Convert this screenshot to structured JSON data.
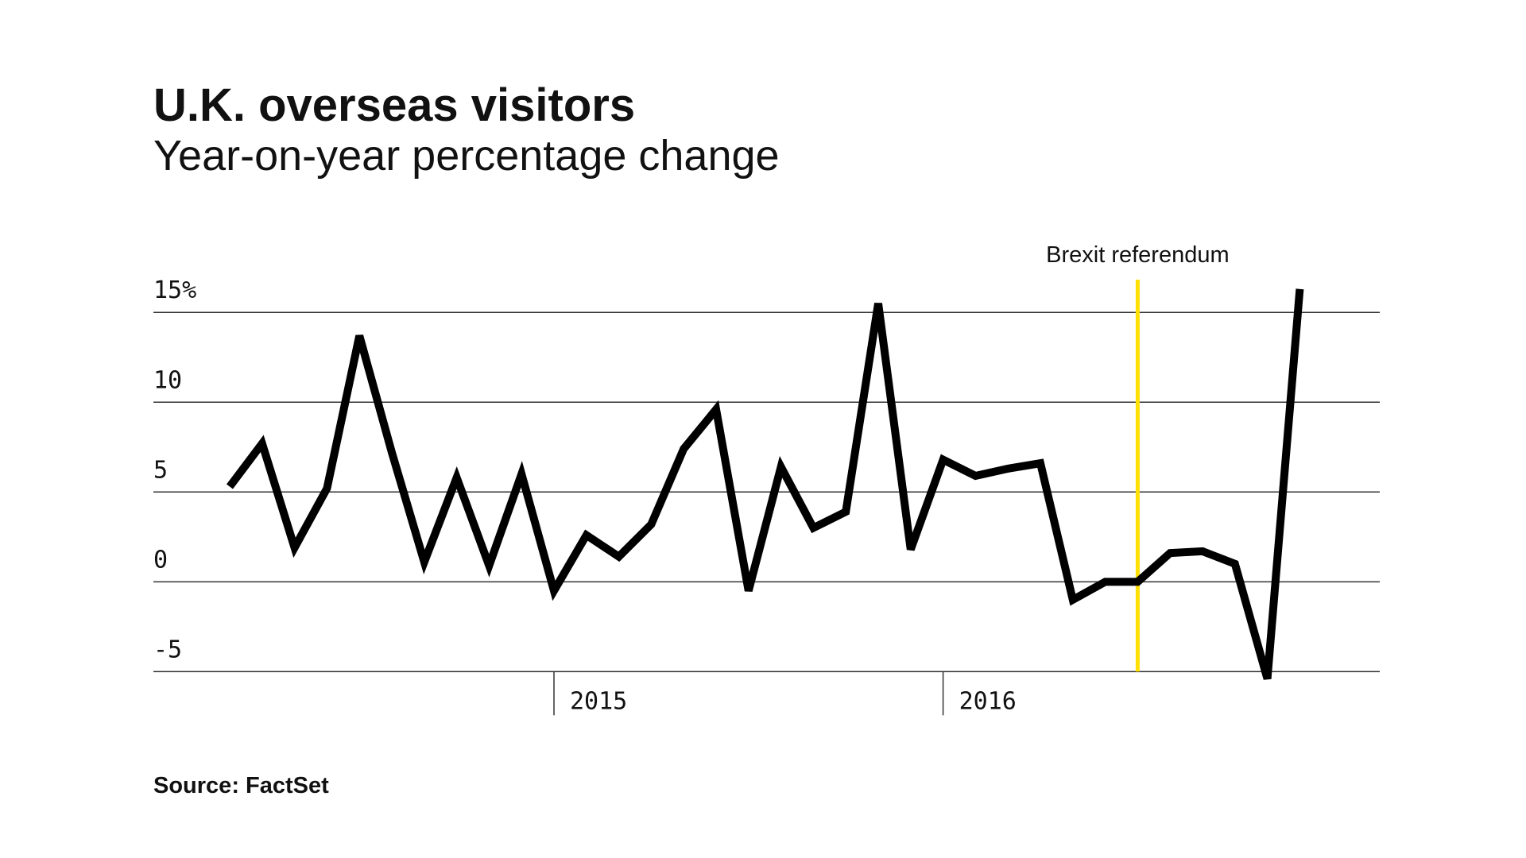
{
  "chart_data": {
    "type": "line",
    "title": "U.K. overseas visitors",
    "subtitle": "Year-on-year percentage change",
    "source": "Source: FactSet",
    "categories": [
      null,
      null,
      null,
      null,
      null,
      null,
      null,
      null,
      null,
      null,
      "2015",
      null,
      null,
      null,
      null,
      null,
      null,
      null,
      null,
      null,
      null,
      null,
      "2016",
      null,
      null,
      null,
      null,
      null,
      null,
      null,
      null,
      null,
      null,
      null
    ],
    "series": [
      {
        "name": "Overseas visitors",
        "color": "#000000",
        "values": [
          5.3,
          7.7,
          1.9,
          5.2,
          13.7,
          7.2,
          1.1,
          5.8,
          0.9,
          6.0,
          -0.5,
          2.6,
          1.4,
          3.2,
          7.4,
          9.6,
          -0.5,
          6.4,
          3.0,
          3.9,
          15.5,
          1.8,
          6.8,
          5.9,
          6.3,
          6.6,
          -1.0,
          0,
          0,
          1.6,
          1.7,
          1.0,
          -5.4,
          16.3
        ]
      }
    ],
    "ylim": [
      -6,
      17
    ],
    "yticks": [
      {
        "value": 15,
        "label": "15%"
      },
      10,
      5,
      0,
      -5
    ],
    "grid": true,
    "annotations": [
      {
        "text": "Brexit referendum",
        "index": 28,
        "color": "#ffe000"
      }
    ]
  }
}
